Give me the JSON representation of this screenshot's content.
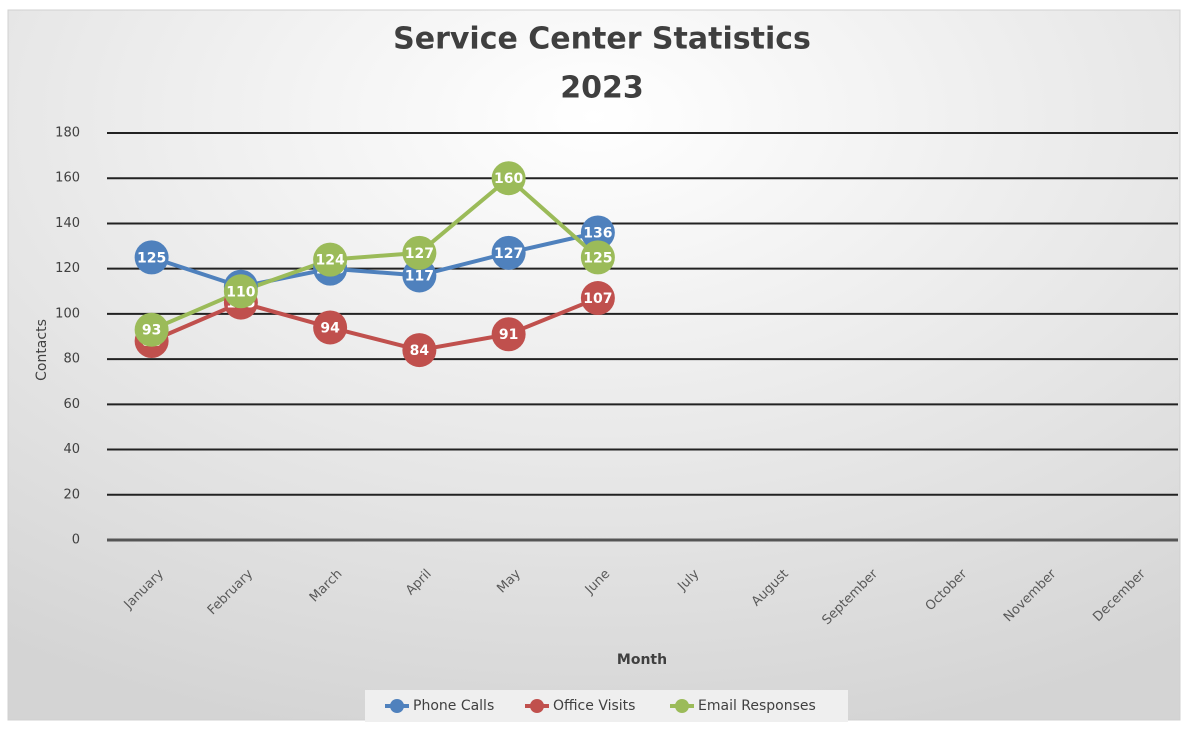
{
  "chart_data": {
    "type": "line",
    "title": "Service Center Statistics",
    "subtitle": "2023",
    "x_label": "Month",
    "y_label": "Contacts",
    "categories": [
      "January",
      "February",
      "March",
      "April",
      "May",
      "June",
      "July",
      "August",
      "September",
      "October",
      "November",
      "December"
    ],
    "series": [
      {
        "name": "Phone Calls",
        "color": "#4f81bd",
        "values": [
          125,
          112,
          120,
          117,
          127,
          136,
          null,
          null,
          null,
          null,
          null,
          null
        ]
      },
      {
        "name": "Office Visits",
        "color": "#c0504d",
        "values": [
          88,
          105,
          94,
          84,
          91,
          107,
          null,
          null,
          null,
          null,
          null,
          null
        ]
      },
      {
        "name": "Email Responses",
        "color": "#9bbb59",
        "values": [
          93,
          110,
          124,
          127,
          160,
          125,
          null,
          null,
          null,
          null,
          null,
          null
        ]
      }
    ],
    "ylim": [
      0,
      180
    ],
    "yticks": [
      0,
      20,
      40,
      60,
      80,
      100,
      120,
      140,
      160,
      180
    ],
    "grid": true,
    "data_labels": true,
    "legend": "bottom"
  }
}
